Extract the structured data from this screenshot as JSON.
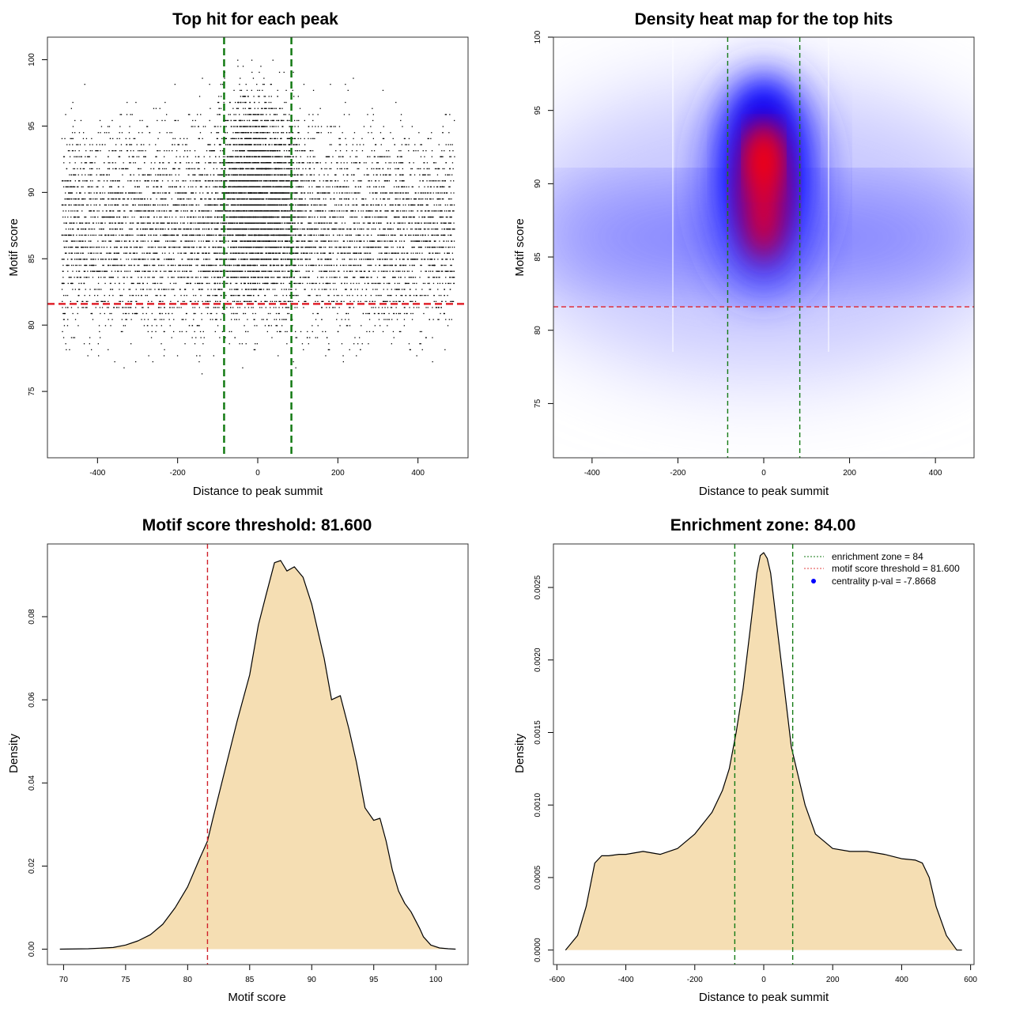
{
  "charts": [
    {
      "id": "scatter",
      "type": "scatter",
      "title": "Top hit for each peak",
      "xlabel": "Distance to peak summit",
      "ylabel": "Motif score",
      "xlim": [
        -525,
        525
      ],
      "ylim": [
        70,
        101.7
      ],
      "xticks": [
        -400,
        -200,
        0,
        200,
        400
      ],
      "yticks": [
        75,
        80,
        85,
        90,
        95,
        100
      ],
      "vlines": [
        -84,
        84
      ],
      "hline": 81.6,
      "hline_color": "#e0202a",
      "vline_color": "#137a13",
      "point_color": "#000000"
    },
    {
      "id": "heatmap",
      "type": "heatmap",
      "title": "Density heat map for the top hits",
      "xlabel": "Distance to peak summit",
      "ylabel": "Motif score",
      "xlim": [
        -490,
        490
      ],
      "ylim": [
        71.3,
        100
      ],
      "xticks": [
        -400,
        -200,
        0,
        200,
        400
      ],
      "yticks": [
        75,
        80,
        85,
        90,
        95,
        100
      ],
      "vlines": [
        -84,
        84
      ],
      "hline": 81.6,
      "hline_color": "#e0202a",
      "vline_color": "#137a13"
    },
    {
      "id": "score-density",
      "type": "area",
      "title": "Motif score threshold: 81.600",
      "xlabel": "Motif score",
      "ylabel": "Density",
      "xlim": [
        68.7,
        102.6
      ],
      "ylim": [
        -0.0037,
        0.0975
      ],
      "xticks": [
        70,
        75,
        80,
        85,
        90,
        95,
        100
      ],
      "yticks": [
        0.0,
        0.02,
        0.04,
        0.06,
        0.08
      ],
      "ytick_labels": [
        "0.00",
        "0.02",
        "0.04",
        "0.06",
        "0.08"
      ],
      "vline": 81.6,
      "vline_color": "#d0202a",
      "fill": "#f5deb3",
      "x": [
        69.7,
        72,
        74,
        75,
        76,
        77,
        78,
        79,
        80,
        81,
        81.6,
        82,
        83,
        84,
        85,
        85.7,
        86.3,
        87,
        87.5,
        88,
        88.6,
        89.3,
        90,
        91,
        91.6,
        92.3,
        93,
        93.6,
        94.3,
        95,
        95.5,
        96,
        96.5,
        97,
        97.5,
        98,
        98.7,
        99,
        99.6,
        100.3,
        101,
        101.6
      ],
      "y": [
        0,
        0.0001,
        0.0004,
        0.001,
        0.002,
        0.0035,
        0.006,
        0.01,
        0.015,
        0.022,
        0.026,
        0.031,
        0.043,
        0.055,
        0.066,
        0.078,
        0.085,
        0.093,
        0.0935,
        0.091,
        0.092,
        0.0895,
        0.083,
        0.07,
        0.06,
        0.061,
        0.053,
        0.045,
        0.034,
        0.031,
        0.0315,
        0.026,
        0.019,
        0.014,
        0.011,
        0.009,
        0.005,
        0.003,
        0.001,
        0.0003,
        0.0001,
        0
      ]
    },
    {
      "id": "distance-density",
      "type": "area",
      "title": "Enrichment zone: 84.00",
      "xlabel": "Distance to peak summit",
      "ylabel": "Density",
      "xlim": [
        -610,
        610
      ],
      "ylim": [
        -0.0001,
        0.0028
      ],
      "xticks": [
        -600,
        -400,
        -200,
        0,
        200,
        400,
        600
      ],
      "yticks": [
        0.0,
        0.0005,
        0.001,
        0.0015,
        0.002,
        0.0025
      ],
      "ytick_labels": [
        "0.0000",
        "0.0005",
        "0.0010",
        "0.0015",
        "0.0020",
        "0.0025"
      ],
      "vlines": [
        -84,
        84
      ],
      "vline_color": "#137a13",
      "fill": "#f5deb3",
      "x": [
        -575,
        -540,
        -515,
        -490,
        -470,
        -450,
        -420,
        -400,
        -350,
        -300,
        -250,
        -200,
        -150,
        -120,
        -100,
        -80,
        -60,
        -40,
        -20,
        -10,
        0,
        10,
        20,
        40,
        60,
        80,
        100,
        120,
        150,
        200,
        250,
        300,
        350,
        400,
        440,
        460,
        480,
        500,
        530,
        560,
        575
      ],
      "y": [
        0,
        0.0001,
        0.0003,
        0.0006,
        0.00065,
        0.00065,
        0.00066,
        0.00066,
        0.00068,
        0.00066,
        0.0007,
        0.0008,
        0.00095,
        0.0011,
        0.00125,
        0.0015,
        0.0018,
        0.0022,
        0.0026,
        0.00272,
        0.00274,
        0.0027,
        0.0026,
        0.0022,
        0.0018,
        0.0014,
        0.0012,
        0.001,
        0.0008,
        0.0007,
        0.00068,
        0.00068,
        0.00066,
        0.00063,
        0.00062,
        0.0006,
        0.0005,
        0.0003,
        0.0001,
        0,
        0
      ],
      "legend": [
        {
          "label": "enrichment zone = 84",
          "style": "dotted-line",
          "color": "#137a13"
        },
        {
          "label": "motif score threshold = 81.600",
          "style": "dotted-line",
          "color": "#e04040"
        },
        {
          "label": "centrality p-val = -7.8668",
          "style": "dot",
          "color": "#0000ff"
        }
      ]
    }
  ]
}
